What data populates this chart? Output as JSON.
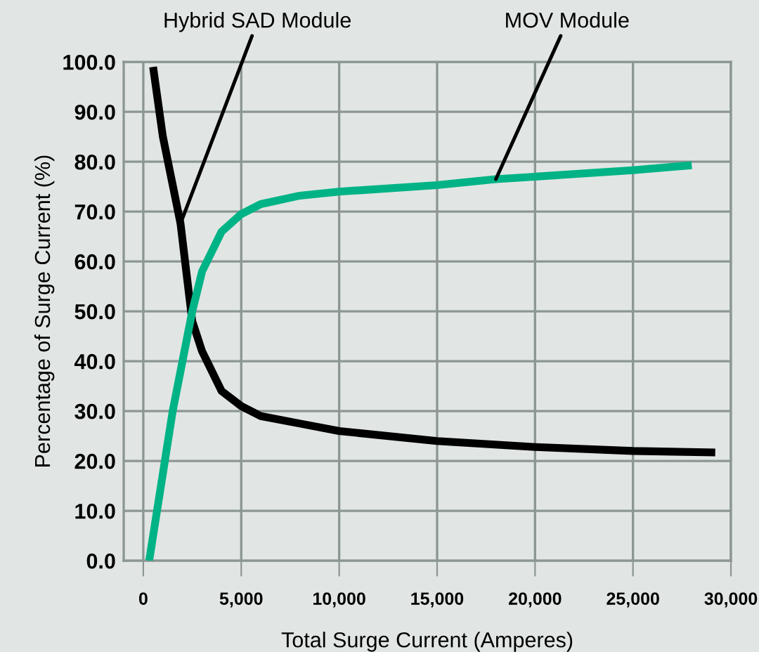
{
  "chart_data": {
    "type": "line",
    "xlabel": "Total Surge Current (Amperes)",
    "ylabel": "Percentage of Surge Current (%)",
    "series": [
      {
        "color": "#000000",
        "x": [
          500,
          1000,
          1900,
          2500,
          3000,
          4000,
          5000,
          6000,
          8000,
          10000,
          15000,
          20000,
          25000,
          29200
        ],
        "values": [
          99,
          85,
          67.6,
          48,
          42,
          34,
          31,
          29,
          27.5,
          26,
          24,
          22.8,
          22,
          21.7
        ]
      },
      {
        "color": "#00b386",
        "x": [
          300,
          1500,
          2500,
          3000,
          4000,
          5000,
          6000,
          8000,
          10000,
          15000,
          18000,
          20000,
          25000,
          28000
        ],
        "values": [
          0,
          30,
          50,
          58,
          66,
          69.5,
          71.5,
          73.2,
          74,
          75.3,
          76.5,
          77,
          78.3,
          79.3
        ]
      }
    ],
    "annotations": [
      {
        "text": "Hybrid SAD Module",
        "x": 1900,
        "y": 67.6
      },
      {
        "text": "MOV Module",
        "x": 18000,
        "y": 76.5
      }
    ],
    "xlim": [
      -1000,
      30000
    ],
    "xticks": [
      {
        "value": 0,
        "label": "0"
      },
      {
        "value": 5000,
        "label": "5,000"
      },
      {
        "value": 10000,
        "label": "10,000"
      },
      {
        "value": 15000,
        "label": "15,000"
      },
      {
        "value": 20000,
        "label": "20,000"
      },
      {
        "value": 25000,
        "label": "25,000"
      },
      {
        "value": 30000,
        "label": "30,000"
      }
    ],
    "ylim": [
      0,
      100
    ],
    "yticks": [
      {
        "value": 0,
        "label": "0.0"
      },
      {
        "value": 10,
        "label": "10.0"
      },
      {
        "value": 20,
        "label": "20.0"
      },
      {
        "value": 30,
        "label": "30.0"
      },
      {
        "value": 40,
        "label": "40.0"
      },
      {
        "value": 50,
        "label": "50.0"
      },
      {
        "value": 60,
        "label": "60.0"
      },
      {
        "value": 70,
        "label": "70.0"
      },
      {
        "value": 80,
        "label": "80.0"
      },
      {
        "value": 90,
        "label": "90.0"
      },
      {
        "value": 100,
        "label": "100.0"
      }
    ],
    "grid": true,
    "legend": false,
    "marker": "none",
    "line_style": "solid"
  }
}
